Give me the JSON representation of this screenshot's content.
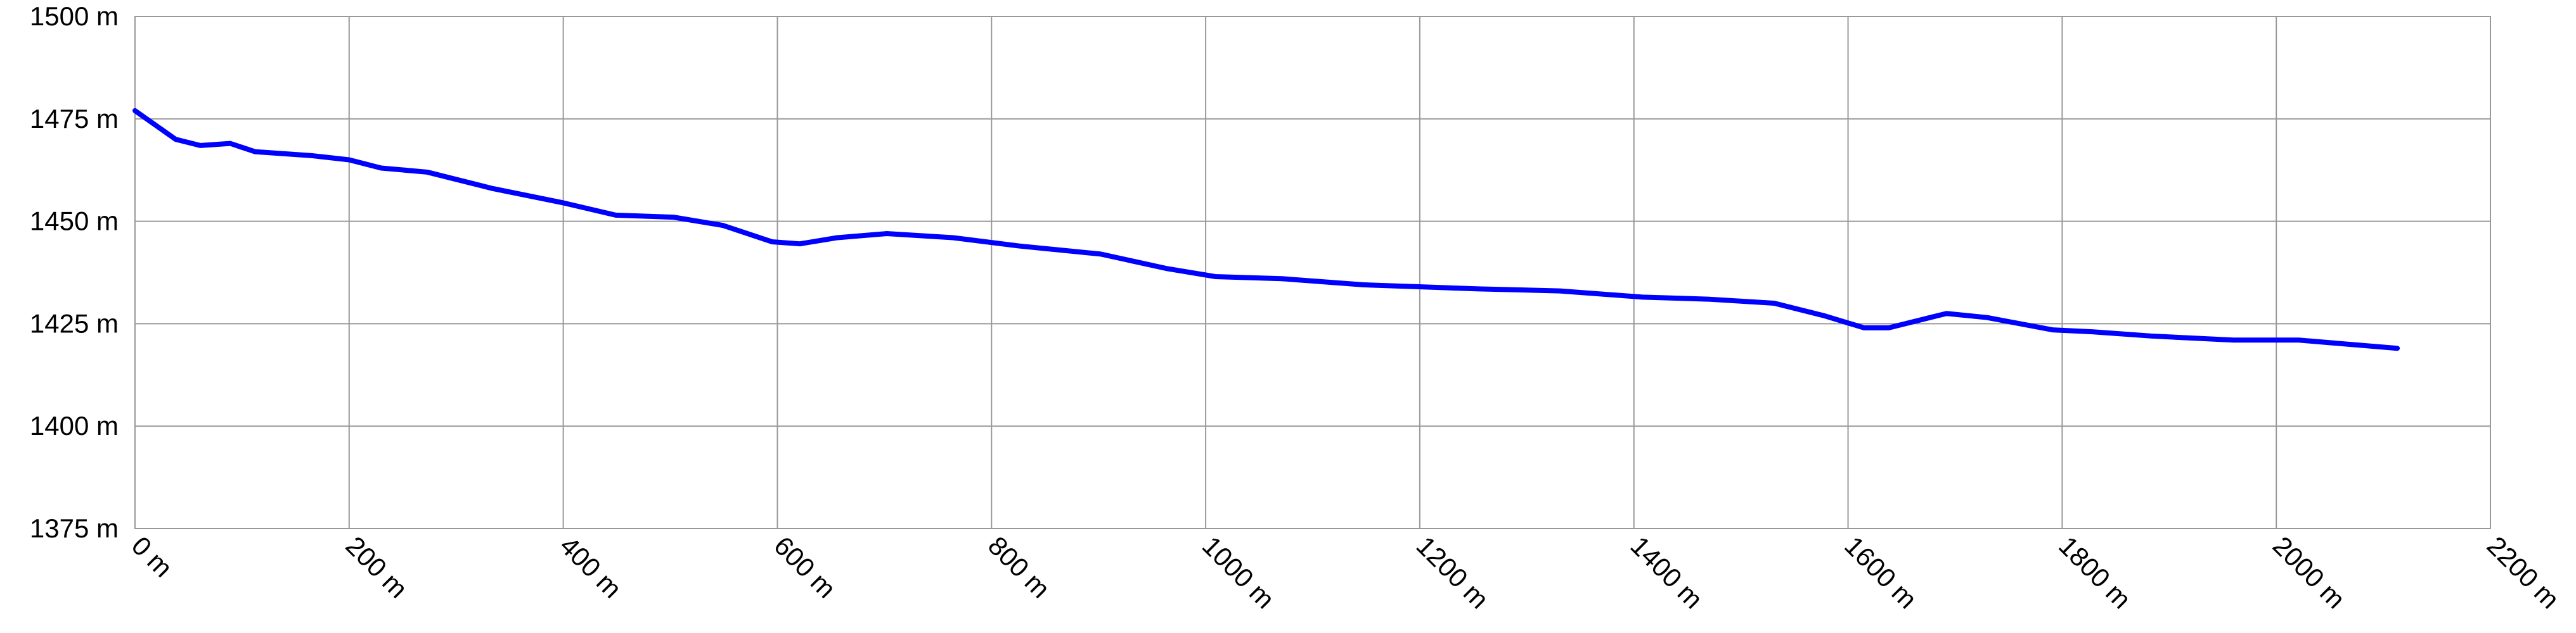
{
  "chart_data": {
    "type": "line",
    "color": "#0000ff",
    "grid": true,
    "x": [
      0,
      38,
      61,
      89,
      112,
      166,
      200,
      230,
      273,
      334,
      400,
      449,
      503,
      549,
      595,
      621,
      656,
      702,
      764,
      825,
      902,
      963,
      1009,
      1071,
      1147,
      1201,
      1255,
      1331,
      1408,
      1469,
      1531,
      1577,
      1615,
      1638,
      1692,
      1730,
      1791,
      1830,
      1883,
      1960,
      2021,
      2113
    ],
    "values": [
      1477,
      1470,
      1468.5,
      1469,
      1467,
      1466,
      1465,
      1463,
      1462,
      1458,
      1454.5,
      1451.5,
      1451,
      1449,
      1445,
      1444.5,
      1446,
      1447,
      1446,
      1444,
      1442,
      1438.5,
      1436.5,
      1436,
      1434.5,
      1434,
      1433.5,
      1433,
      1431.5,
      1431,
      1430,
      1427,
      1424,
      1424,
      1427.5,
      1426.5,
      1423.5,
      1423,
      1422,
      1421,
      1421,
      1419
    ],
    "xlim": [
      0,
      2200
    ],
    "xticks": [
      {
        "value": 0,
        "label": "0 m"
      },
      {
        "value": 200,
        "label": "200 m"
      },
      {
        "value": 400,
        "label": "400 m"
      },
      {
        "value": 600,
        "label": "600 m"
      },
      {
        "value": 800,
        "label": "800 m"
      },
      {
        "value": 1000,
        "label": "1000 m"
      },
      {
        "value": 1200,
        "label": "1200 m"
      },
      {
        "value": 1400,
        "label": "1400 m"
      },
      {
        "value": 1600,
        "label": "1600 m"
      },
      {
        "value": 1800,
        "label": "1800 m"
      },
      {
        "value": 2000,
        "label": "2000 m"
      },
      {
        "value": 2200,
        "label": "2200 m"
      }
    ],
    "ylim": [
      1375,
      1500
    ],
    "yticks": [
      {
        "value": 1375,
        "label": "1375 m"
      },
      {
        "value": 1400,
        "label": "1400 m"
      },
      {
        "value": 1425,
        "label": "1425 m"
      },
      {
        "value": 1450,
        "label": "1450 m"
      },
      {
        "value": 1475,
        "label": "1475 m"
      },
      {
        "value": 1500,
        "label": "1500 m"
      }
    ]
  }
}
